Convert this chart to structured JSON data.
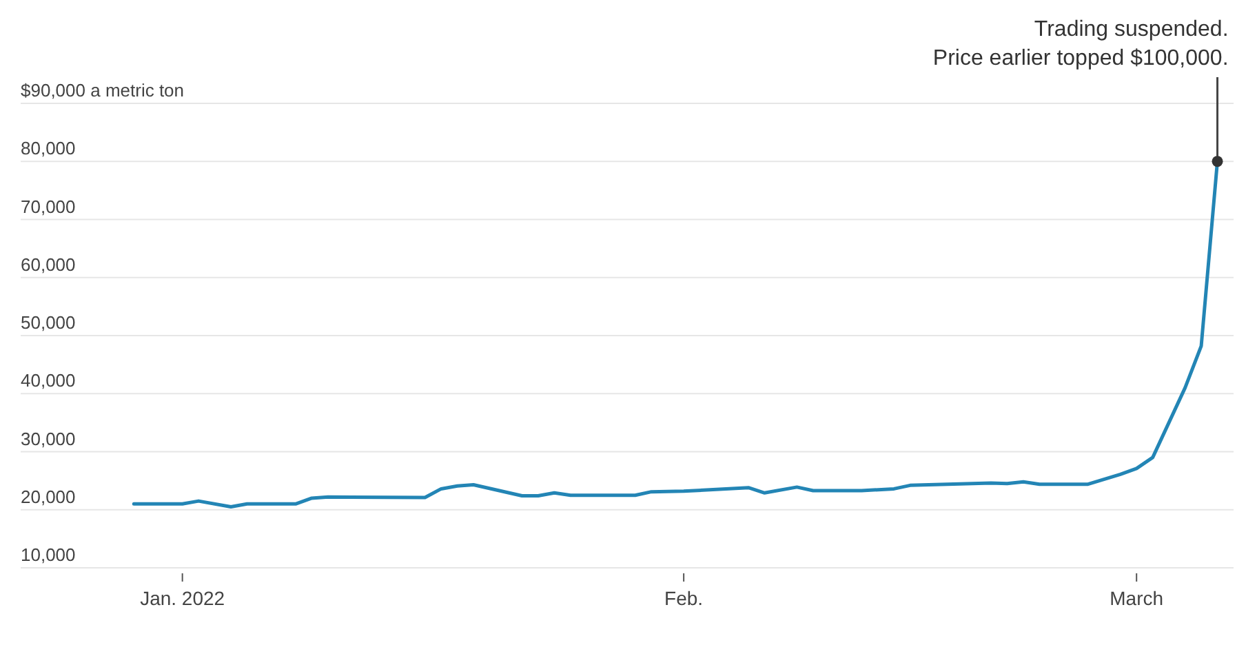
{
  "chart_data": {
    "type": "line",
    "x": [
      "2021-12-29",
      "2022-01-01",
      "2022-01-02",
      "2022-01-04",
      "2022-01-05",
      "2022-01-08",
      "2022-01-09",
      "2022-01-10",
      "2022-01-16",
      "2022-01-17",
      "2022-01-18",
      "2022-01-19",
      "2022-01-22",
      "2022-01-23",
      "2022-01-24",
      "2022-01-25",
      "2022-01-29",
      "2022-01-30",
      "2022-02-01",
      "2022-02-05",
      "2022-02-06",
      "2022-02-08",
      "2022-02-09",
      "2022-02-12",
      "2022-02-14",
      "2022-02-15",
      "2022-02-20",
      "2022-02-21",
      "2022-02-22",
      "2022-02-23",
      "2022-02-26",
      "2022-02-28",
      "2022-03-01",
      "2022-03-02",
      "2022-03-04",
      "2022-03-05",
      "2022-03-06"
    ],
    "series": [
      {
        "color": "#2385b5",
        "values": [
          21000,
          21000,
          21500,
          20500,
          21000,
          21000,
          22000,
          22200,
          22100,
          23600,
          24100,
          24300,
          22400,
          22400,
          22900,
          22500,
          22500,
          23100,
          23200,
          23800,
          22900,
          23900,
          23300,
          23300,
          23600,
          24200,
          24600,
          24500,
          24800,
          24400,
          24400,
          26100,
          27100,
          29000,
          41000,
          48200,
          80000
        ]
      }
    ],
    "xlim": [
      "2021-12-22",
      "2022-03-07"
    ],
    "xticks": [
      {
        "value": "2022-01-01",
        "label": "Jan. 2022"
      },
      {
        "value": "2022-02-01",
        "label": "Feb."
      },
      {
        "value": "2022-03-01",
        "label": "March"
      }
    ],
    "ylim": [
      10000,
      90000
    ],
    "yticks": [
      {
        "value": 10000,
        "label": "10,000"
      },
      {
        "value": 20000,
        "label": "20,000"
      },
      {
        "value": 30000,
        "label": "30,000"
      },
      {
        "value": 40000,
        "label": "40,000"
      },
      {
        "value": 50000,
        "label": "50,000"
      },
      {
        "value": 60000,
        "label": "60,000"
      },
      {
        "value": 70000,
        "label": "70,000"
      },
      {
        "value": 80000,
        "label": "80,000"
      },
      {
        "value": 90000,
        "label": "$90,000 a metric ton"
      }
    ],
    "grid": "y",
    "line_style": "solid",
    "marker": "none",
    "annotations": [
      {
        "text": "Trading suspended.\nPrice earlier topped $100,000.",
        "x": "2022-03-06",
        "y": 80000
      }
    ]
  }
}
